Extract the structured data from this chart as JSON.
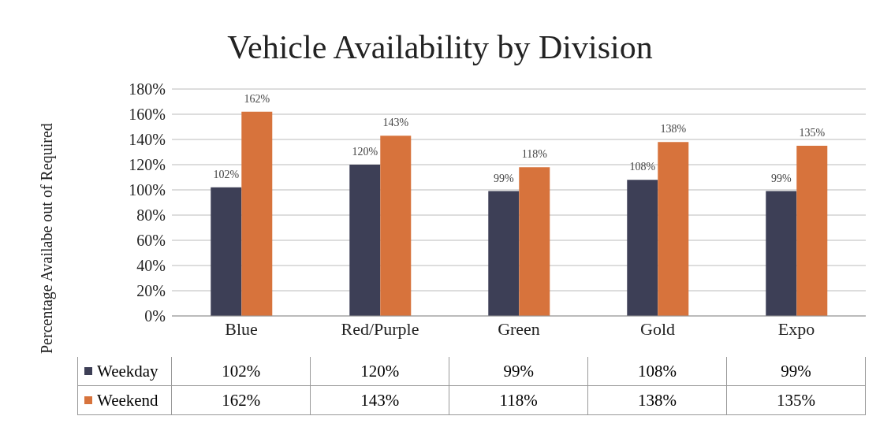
{
  "chart_data": {
    "type": "bar",
    "title": "Vehicle Availability by Division",
    "ylabel": "Percentage Availabe out of Required",
    "categories": [
      "Blue",
      "Red/Purple",
      "Green",
      "Gold",
      "Expo"
    ],
    "series": [
      {
        "name": "Weekday",
        "color": "#3d3f56",
        "values": [
          102,
          120,
          99,
          108,
          99
        ],
        "value_labels": [
          "102%",
          "120%",
          "99%",
          "108%",
          "99%"
        ]
      },
      {
        "name": "Weekend",
        "color": "#d7733c",
        "values": [
          162,
          143,
          118,
          138,
          135
        ],
        "value_labels": [
          "162%",
          "143%",
          "118%",
          "138%",
          "135%"
        ]
      }
    ],
    "ylim": [
      0,
      180
    ],
    "yticks": [
      {
        "value": 0,
        "label": "0%"
      },
      {
        "value": 20,
        "label": "20%"
      },
      {
        "value": 40,
        "label": "40%"
      },
      {
        "value": 60,
        "label": "60%"
      },
      {
        "value": 80,
        "label": "80%"
      },
      {
        "value": 100,
        "label": "100%"
      },
      {
        "value": 120,
        "label": "120%"
      },
      {
        "value": 140,
        "label": "140%"
      },
      {
        "value": 160,
        "label": "160%"
      },
      {
        "value": 180,
        "label": "180%"
      }
    ],
    "grid": "y",
    "legend": "bottom"
  }
}
